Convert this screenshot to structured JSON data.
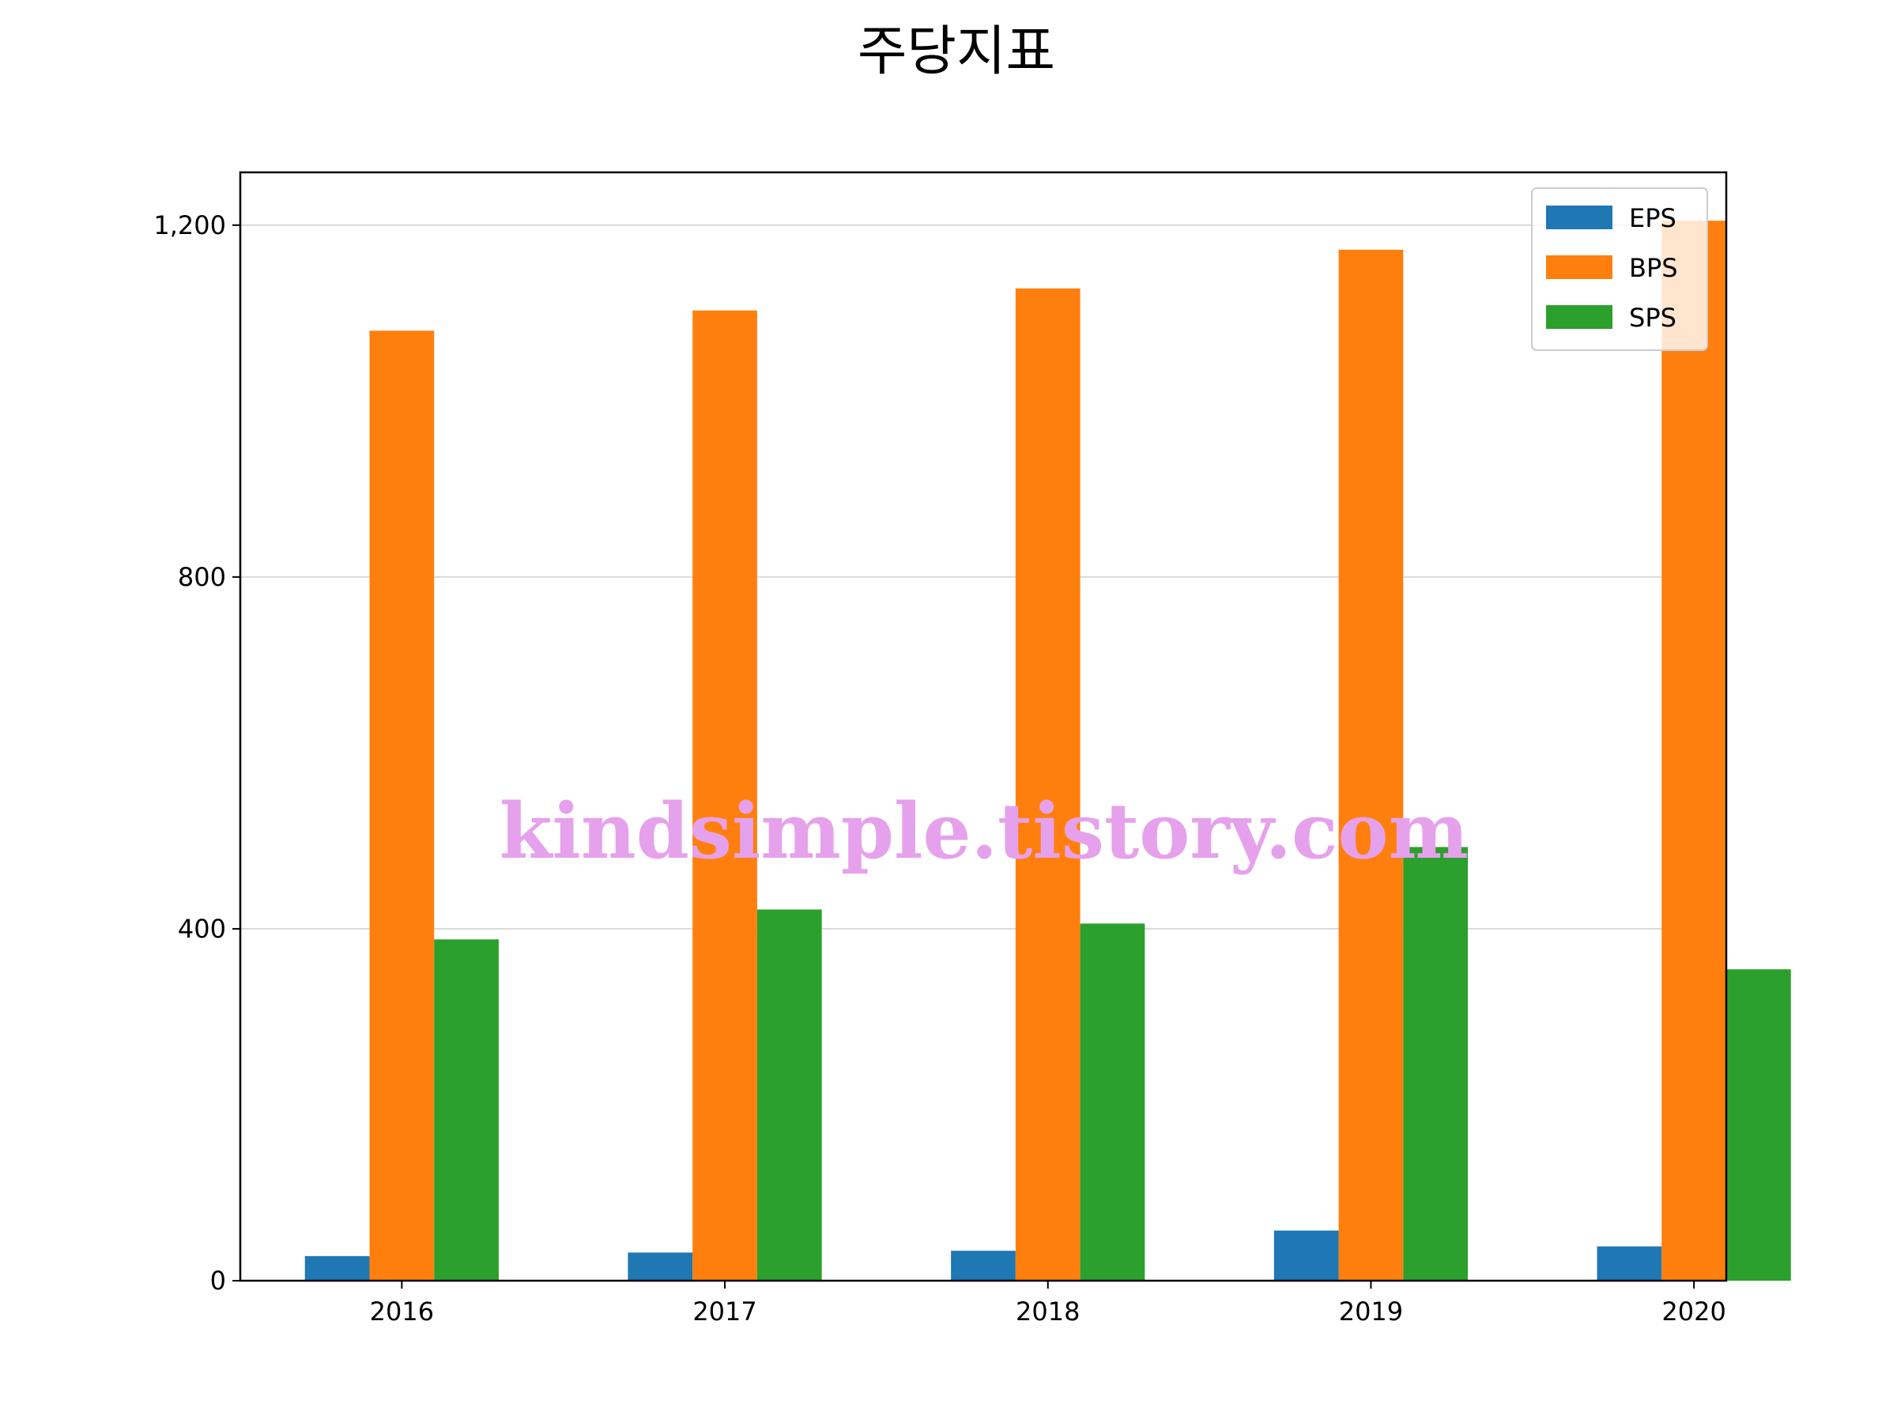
{
  "chart_data": {
    "type": "bar",
    "title": "주당지표",
    "xlabel": "",
    "ylabel": "",
    "categories": [
      "2016",
      "2017",
      "2018",
      "2019",
      "2020"
    ],
    "series": [
      {
        "name": "EPS",
        "color": "#1f77b4",
        "values": [
          28,
          32,
          34,
          57,
          39
        ]
      },
      {
        "name": "BPS",
        "color": "#ff7f0e",
        "values": [
          1080,
          1103,
          1128,
          1172,
          1205
        ]
      },
      {
        "name": "SPS",
        "color": "#2ca02c",
        "values": [
          388,
          422,
          406,
          493,
          354
        ]
      }
    ],
    "ylim": [
      0,
      1260
    ],
    "yticks": [
      0,
      400,
      800,
      1200
    ],
    "ytick_labels": [
      "0",
      "400",
      "800",
      "1,200"
    ],
    "grid": "y",
    "legend_position": "top-right",
    "watermark": "kindsimple.tistory.com",
    "watermark_color": "#e6a1ec"
  }
}
